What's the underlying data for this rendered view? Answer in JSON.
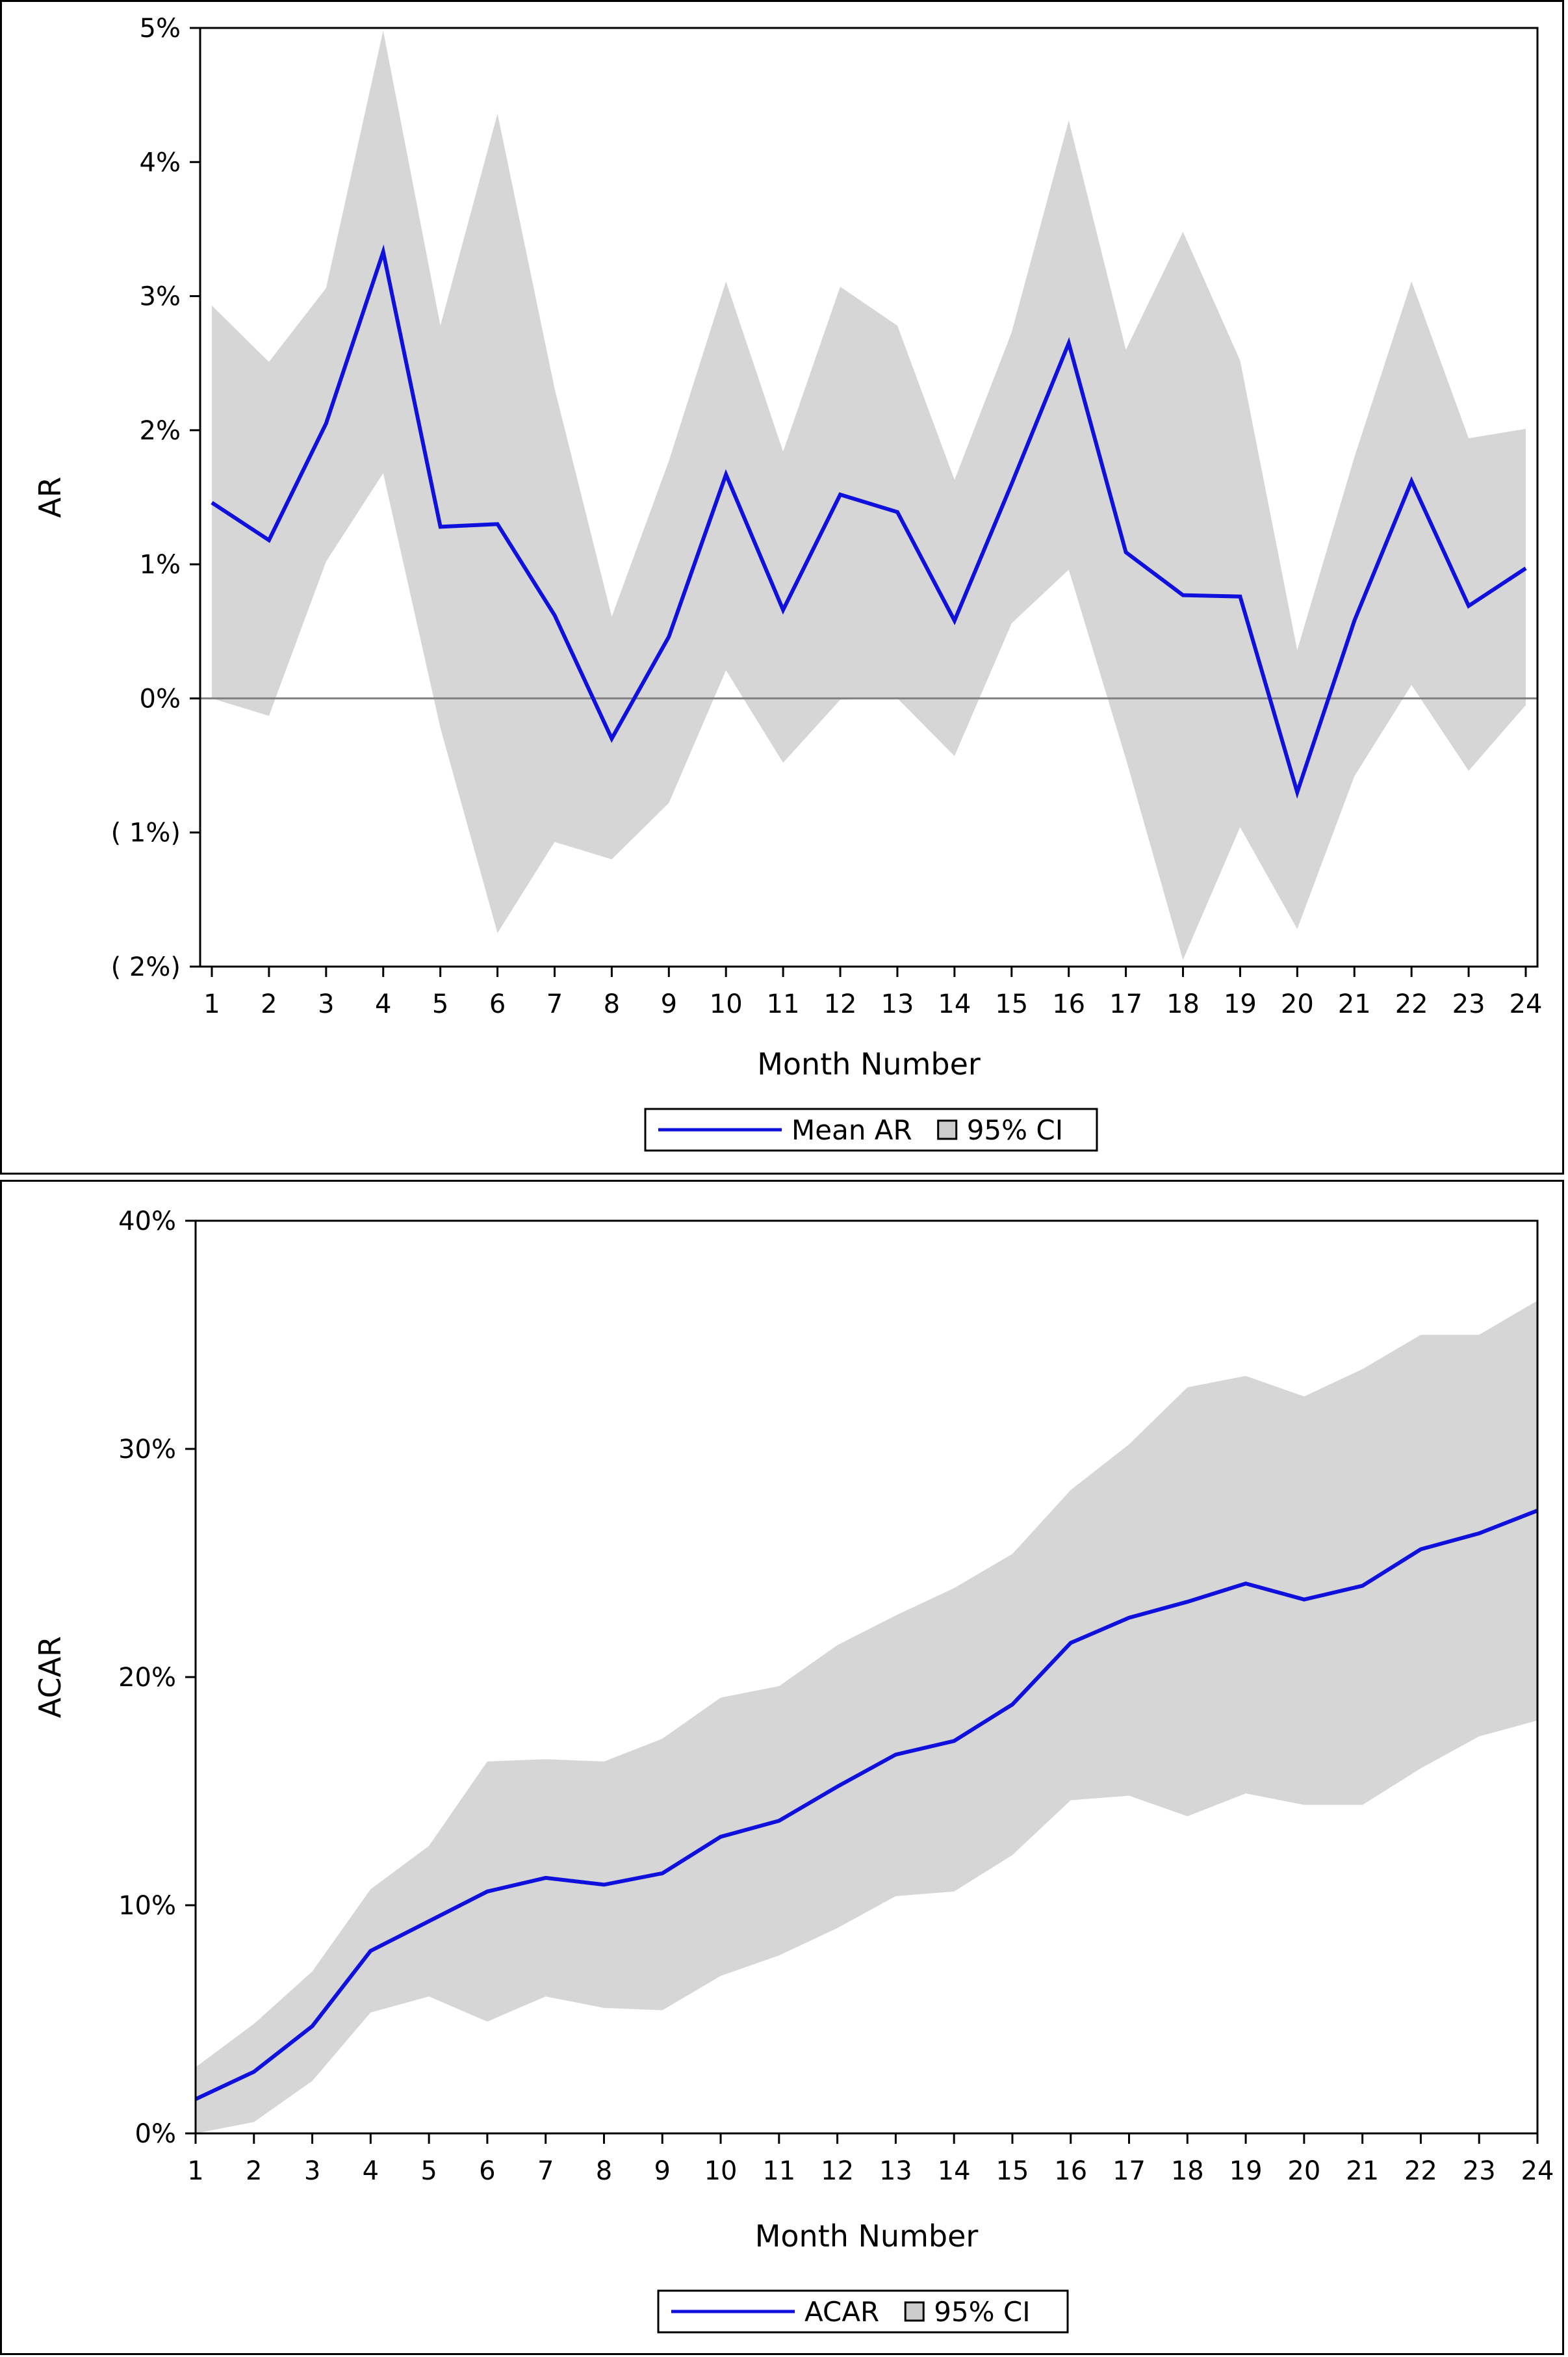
{
  "colors": {
    "line": "#1010dd",
    "band": "#d6d6d6",
    "band_swatch": "#cccccc",
    "axis": "#000000",
    "zero_line": "#808080"
  },
  "chart_data": [
    {
      "type": "line",
      "title": "",
      "xlabel": "Month Number",
      "ylabel": "AR",
      "x": [
        1,
        2,
        3,
        4,
        5,
        6,
        7,
        8,
        9,
        10,
        11,
        12,
        13,
        14,
        15,
        16,
        17,
        18,
        19,
        20,
        21,
        22,
        23,
        24
      ],
      "ylim": [
        -0.02,
        0.05
      ],
      "yticks": [
        -0.02,
        -0.01,
        0,
        0.01,
        0.02,
        0.03,
        0.04,
        0.05
      ],
      "ytick_labels": [
        "( 2%)",
        "( 1%)",
        "0%",
        "1%",
        "2%",
        "3%",
        "4%",
        "5%"
      ],
      "reference_line_y": 0,
      "grid": false,
      "legend_position": "bottom-center",
      "series": [
        {
          "name": "Mean AR",
          "kind": "line",
          "values": [
            0.0146,
            0.0118,
            0.0205,
            0.0333,
            0.0128,
            0.013,
            0.0062,
            -0.003,
            0.0046,
            0.0167,
            0.0066,
            0.0152,
            0.0139,
            0.0058,
            0.016,
            0.0265,
            0.0109,
            0.0077,
            0.0076,
            -0.007,
            0.0058,
            0.0162,
            0.0069,
            0.0097
          ]
        },
        {
          "name": "95% CI",
          "kind": "band",
          "lower": [
            0.0,
            -0.0013,
            0.0102,
            0.0168,
            -0.0022,
            -0.0175,
            -0.0107,
            -0.012,
            -0.0078,
            0.0021,
            -0.0048,
            -0.0001,
            0.0,
            -0.0043,
            0.0056,
            0.0096,
            -0.0045,
            -0.0195,
            -0.0096,
            -0.0172,
            -0.0058,
            0.001,
            -0.0054,
            -0.0005
          ],
          "upper": [
            0.0293,
            0.0251,
            0.0306,
            0.0498,
            0.0278,
            0.0436,
            0.0231,
            0.0061,
            0.0177,
            0.0311,
            0.0184,
            0.0307,
            0.0278,
            0.0163,
            0.0273,
            0.0431,
            0.026,
            0.0348,
            0.0252,
            0.0036,
            0.018,
            0.0311,
            0.0194,
            0.0201
          ]
        }
      ]
    },
    {
      "type": "line",
      "title": "",
      "xlabel": "Month Number",
      "ylabel": "ACAR",
      "x": [
        1,
        2,
        3,
        4,
        5,
        6,
        7,
        8,
        9,
        10,
        11,
        12,
        13,
        14,
        15,
        16,
        17,
        18,
        19,
        20,
        21,
        22,
        23,
        24
      ],
      "ylim": [
        0,
        0.4
      ],
      "yticks": [
        0,
        0.1,
        0.2,
        0.3,
        0.4
      ],
      "ytick_labels": [
        "0%",
        "10%",
        "20%",
        "30%",
        "40%"
      ],
      "grid": false,
      "legend_position": "bottom-center",
      "series": [
        {
          "name": "ACAR",
          "kind": "line",
          "values": [
            0.015,
            0.027,
            0.047,
            0.08,
            0.093,
            0.106,
            0.112,
            0.109,
            0.114,
            0.13,
            0.137,
            0.152,
            0.166,
            0.172,
            0.188,
            0.215,
            0.226,
            0.233,
            0.241,
            0.234,
            0.24,
            0.256,
            0.263,
            0.273
          ]
        },
        {
          "name": "95% CI",
          "kind": "band",
          "lower": [
            0.0,
            0.005,
            0.023,
            0.053,
            0.06,
            0.049,
            0.06,
            0.055,
            0.054,
            0.069,
            0.078,
            0.09,
            0.104,
            0.106,
            0.122,
            0.146,
            0.148,
            0.139,
            0.149,
            0.144,
            0.144,
            0.16,
            0.174,
            0.181
          ],
          "upper": [
            0.029,
            0.048,
            0.071,
            0.107,
            0.126,
            0.163,
            0.164,
            0.163,
            0.173,
            0.191,
            0.196,
            0.214,
            0.227,
            0.239,
            0.254,
            0.282,
            0.302,
            0.327,
            0.332,
            0.323,
            0.335,
            0.35,
            0.35,
            0.365
          ]
        }
      ]
    }
  ]
}
